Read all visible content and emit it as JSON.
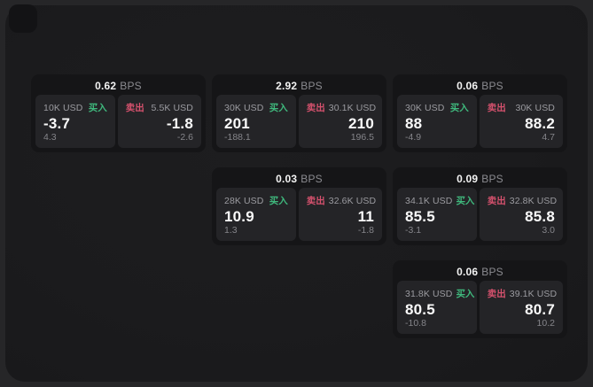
{
  "labels": {
    "bps_unit": "BPS",
    "buy": "买入",
    "sell": "卖出"
  },
  "colors": {
    "buy_green": "#3fb97d",
    "sell_red": "#d4516d",
    "card_background": "#151517",
    "tile_background": "#242427",
    "panel_background": "#1b1b1d",
    "backdrop": "#262628"
  },
  "cards": [
    {
      "row": 1,
      "col": 1,
      "bps": "0.62",
      "buy": {
        "notional": "10K USD",
        "price": "-3.7",
        "delta": "4.3"
      },
      "sell": {
        "notional": "5.5K USD",
        "price": "-1.8",
        "delta": "-2.6"
      }
    },
    {
      "row": 1,
      "col": 2,
      "bps": "2.92",
      "buy": {
        "notional": "30K USD",
        "price": "201",
        "delta": "-188.1"
      },
      "sell": {
        "notional": "30.1K USD",
        "price": "210",
        "delta": "196.5"
      }
    },
    {
      "row": 1,
      "col": 3,
      "bps": "0.06",
      "buy": {
        "notional": "30K USD",
        "price": "88",
        "delta": "-4.9"
      },
      "sell": {
        "notional": "30K USD",
        "price": "88.2",
        "delta": "4.7"
      }
    },
    {
      "row": 2,
      "col": 2,
      "bps": "0.03",
      "buy": {
        "notional": "28K USD",
        "price": "10.9",
        "delta": "1.3"
      },
      "sell": {
        "notional": "32.6K USD",
        "price": "11",
        "delta": "-1.8"
      }
    },
    {
      "row": 2,
      "col": 3,
      "bps": "0.09",
      "buy": {
        "notional": "34.1K USD",
        "price": "85.5",
        "delta": "-3.1"
      },
      "sell": {
        "notional": "32.8K USD",
        "price": "85.8",
        "delta": "3.0"
      }
    },
    {
      "row": 3,
      "col": 3,
      "bps": "0.06",
      "buy": {
        "notional": "31.8K USD",
        "price": "80.5",
        "delta": "-10.8"
      },
      "sell": {
        "notional": "39.1K USD",
        "price": "80.7",
        "delta": "10.2"
      }
    }
  ]
}
